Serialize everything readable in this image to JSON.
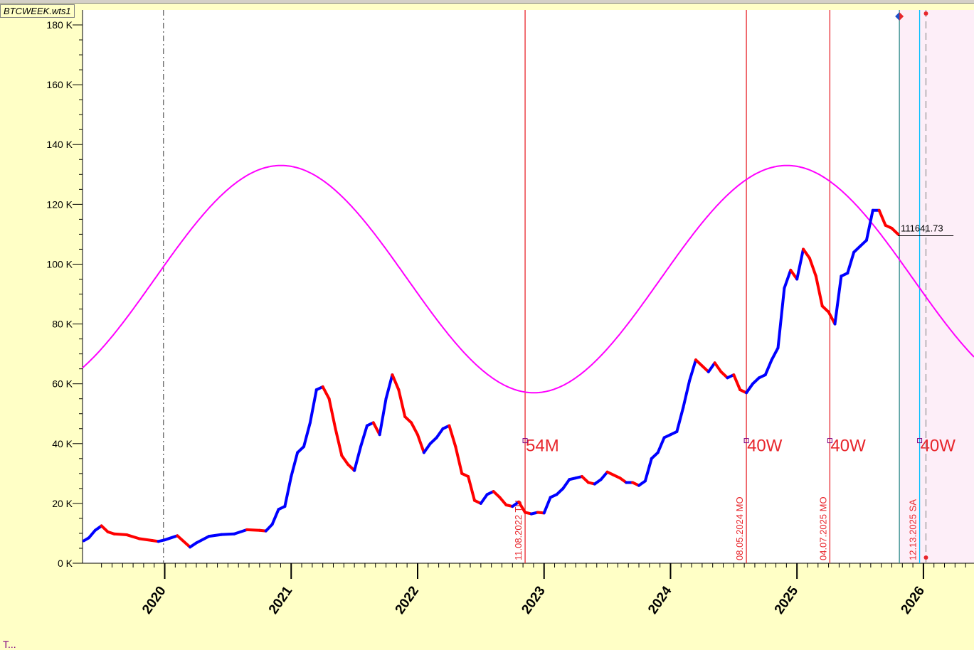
{
  "window": {
    "file_tab": "BTCWEEK.wts1",
    "bottom_label": "T..."
  },
  "chart_data": {
    "type": "line",
    "title": "",
    "xlabel": "",
    "ylabel": "",
    "ylim": [
      0,
      185000
    ],
    "xlim": [
      2019.35,
      2026.4
    ],
    "y_ticks": [
      0,
      20000,
      40000,
      60000,
      80000,
      100000,
      120000,
      140000,
      160000,
      180000
    ],
    "y_tick_labels": [
      "0 K",
      "20 K",
      "40 K",
      "60 K",
      "80 K",
      "100 K",
      "120 K",
      "140 K",
      "160 K",
      "180 K"
    ],
    "x_ticks": [
      2020,
      2021,
      2022,
      2023,
      2024,
      2025,
      2026
    ],
    "x_tick_labels": [
      "2020",
      "2021",
      "2022",
      "2023",
      "2024",
      "2025",
      "2026"
    ],
    "highlighted_x_tick": "2020",
    "grid": false,
    "colors": {
      "up": "#0000ff",
      "down": "#ff0000",
      "cycle": "#ff00ff",
      "markers": "#ff0000",
      "current": "#00bfff",
      "zone": "#fdeef8"
    },
    "series": [
      {
        "kind": "price",
        "x": [
          2019.36,
          2019.4,
          2019.45,
          2019.5,
          2019.55,
          2019.6,
          2019.7,
          2019.8,
          2019.9,
          2019.95,
          2020.0,
          2020.1,
          2020.2,
          2020.25,
          2020.35,
          2020.45,
          2020.55,
          2020.65,
          2020.75,
          2020.8,
          2020.85,
          2020.9,
          2020.95,
          2021.0,
          2021.05,
          2021.1,
          2021.15,
          2021.2,
          2021.25,
          2021.3,
          2021.35,
          2021.4,
          2021.45,
          2021.5,
          2021.55,
          2021.6,
          2021.65,
          2021.7,
          2021.75,
          2021.8,
          2021.85,
          2021.9,
          2021.95,
          2022.0,
          2022.05,
          2022.1,
          2022.15,
          2022.2,
          2022.25,
          2022.3,
          2022.35,
          2022.4,
          2022.45,
          2022.5,
          2022.55,
          2022.6,
          2022.65,
          2022.7,
          2022.75,
          2022.8,
          2022.85,
          2022.9,
          2022.95,
          2023.0,
          2023.05,
          2023.1,
          2023.15,
          2023.2,
          2023.25,
          2023.3,
          2023.35,
          2023.4,
          2023.45,
          2023.5,
          2023.55,
          2023.6,
          2023.65,
          2023.7,
          2023.75,
          2023.8,
          2023.85,
          2023.9,
          2023.95,
          2024.0,
          2024.05,
          2024.1,
          2024.15,
          2024.2,
          2024.25,
          2024.3,
          2024.35,
          2024.4,
          2024.45,
          2024.5,
          2024.55,
          2024.6,
          2024.65,
          2024.7,
          2024.75,
          2024.8,
          2024.85,
          2024.9,
          2024.95,
          2025.0,
          2025.05,
          2025.1,
          2025.15,
          2025.2,
          2025.25,
          2025.3,
          2025.35,
          2025.4,
          2025.45,
          2025.5,
          2025.55,
          2025.6,
          2025.65,
          2025.7,
          2025.75,
          2025.8
        ],
        "values": [
          7500,
          8500,
          11000,
          12500,
          10500,
          9800,
          9500,
          8200,
          7600,
          7300,
          7800,
          9200,
          5400,
          6800,
          9000,
          9600,
          9800,
          11200,
          11000,
          10800,
          13000,
          18000,
          19000,
          29000,
          37000,
          39000,
          47000,
          58000,
          59000,
          55000,
          45000,
          36000,
          33000,
          31000,
          39000,
          46000,
          47000,
          43000,
          55000,
          63000,
          58000,
          49000,
          47000,
          43000,
          37000,
          40000,
          42000,
          45000,
          46000,
          39000,
          30000,
          29000,
          21000,
          20000,
          23000,
          24000,
          22000,
          19500,
          19000,
          20500,
          17000,
          16500,
          17000,
          16800,
          22000,
          23000,
          25000,
          28000,
          28500,
          29000,
          27000,
          26500,
          28000,
          30500,
          29500,
          28500,
          27000,
          27000,
          26000,
          27500,
          35000,
          37000,
          42000,
          43000,
          44000,
          52000,
          61000,
          68000,
          66000,
          64000,
          67000,
          64000,
          62000,
          63000,
          58000,
          57000,
          60000,
          62000,
          63000,
          68000,
          72000,
          92000,
          98000,
          95000,
          105000,
          102000,
          96000,
          86000,
          84000,
          80000,
          96000,
          97000,
          104000,
          106000,
          108000,
          118000,
          118000,
          113000,
          112000,
          110000
        ]
      },
      {
        "kind": "cycle",
        "period_years": 4.0,
        "peak_x": 2020.92,
        "trough_x": 2022.92,
        "peak_value": 133000,
        "trough_value": 57000
      }
    ],
    "annotations": {
      "vertical_lines": [
        {
          "x": 2019.99,
          "style": "dash-dot",
          "color": "#666666"
        },
        {
          "x": 2022.85,
          "style": "solid",
          "color": "#e8262c",
          "date_label": "11.08.2022 TU",
          "cycle_label": "54M"
        },
        {
          "x": 2024.6,
          "style": "solid",
          "color": "#e8262c",
          "date_label": "08.05.2024 MO",
          "cycle_label": "40W"
        },
        {
          "x": 2025.26,
          "style": "solid",
          "color": "#e8262c",
          "date_label": "04.07.2025 MO",
          "cycle_label": "40W"
        },
        {
          "x": 2025.97,
          "style": "solid",
          "color": "#00bfff",
          "date_label": "12.13.2025 SA",
          "cycle_label": "40W"
        },
        {
          "x": 2025.81,
          "style": "solid",
          "color": "#2e8b8b"
        },
        {
          "x": 2026.02,
          "style": "dash",
          "color": "#999999"
        }
      ],
      "price_tag": {
        "text": "111641.73",
        "value": 111641.73
      }
    }
  }
}
